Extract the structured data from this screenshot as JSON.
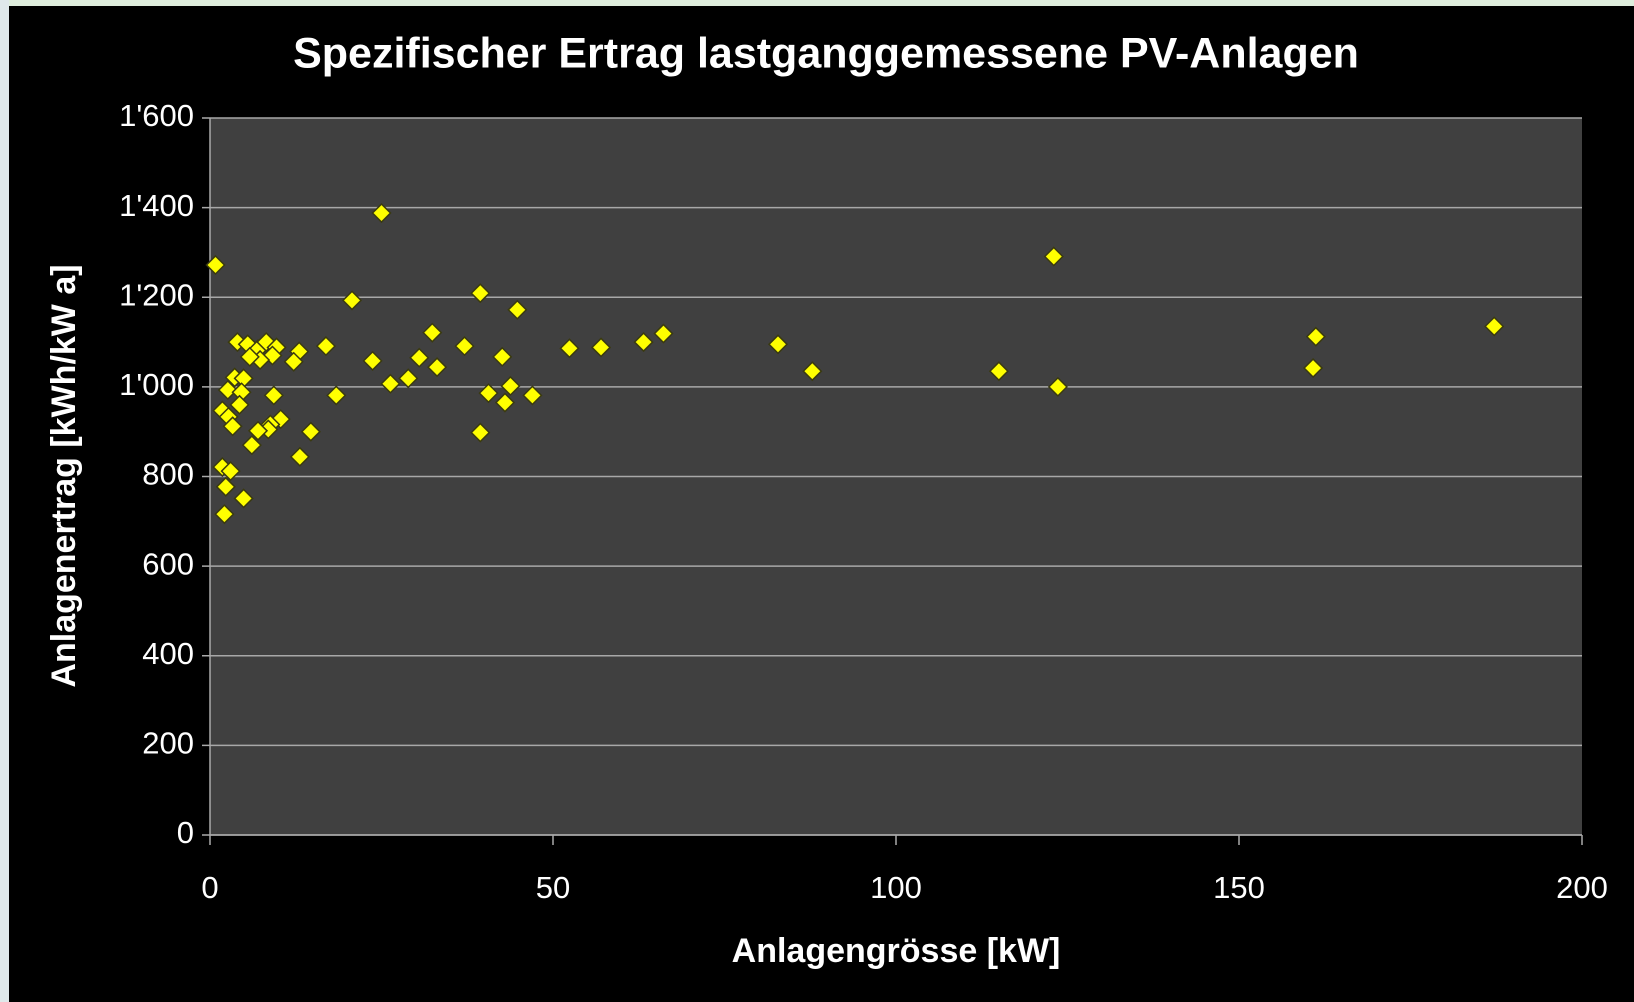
{
  "chart_data": {
    "type": "scatter",
    "title": "Spezifischer Ertrag lastganggemessene PV-Anlagen",
    "x_label": "Anlagengrösse [kW]",
    "y_label": "Anlagenertrag [kWh/kW a]",
    "color": "#ffff00",
    "xlim": [
      0,
      200
    ],
    "xticks": [
      0,
      50,
      100,
      150,
      200
    ],
    "ylim": [
      0,
      1600
    ],
    "yticks": [
      0,
      200,
      400,
      600,
      800,
      {
        "value": 1000,
        "label": "1'000"
      },
      {
        "value": 1200,
        "label": "1'200"
      },
      {
        "value": 1400,
        "label": "1'400"
      },
      {
        "value": 1600,
        "label": "1'600"
      }
    ],
    "grid": true,
    "x": [
      0.8,
      25,
      20.7,
      39.4,
      44.8,
      32.4,
      37.1,
      16.9,
      13,
      12.2,
      23.7,
      30.5,
      42.6,
      33.1,
      52.4,
      57,
      63.2,
      66.1,
      82.8,
      87.8,
      115,
      123,
      123.6,
      161.2,
      160.8,
      187.2,
      26.3,
      28.9,
      18.4,
      47,
      40.6,
      43.8,
      43,
      39.4,
      14.7,
      13.1,
      9.3,
      10.3,
      8.8,
      8.5,
      7,
      6.1,
      4,
      5.5,
      7,
      8.2,
      9.7,
      9.1,
      7.3,
      5.8,
      3.6,
      4.9,
      2.6,
      4.6,
      4.3,
      1.8,
      2.7,
      3.3,
      1.8,
      3,
      2.3,
      4.9,
      2.1
    ],
    "values": [
      1272,
      1388,
      1193,
      1209,
      1172,
      1121,
      1091,
      1091,
      1079,
      1056,
      1058,
      1065,
      1067,
      1044,
      1086,
      1088,
      1100,
      1119,
      1095,
      1035,
      1035,
      1291,
      1000,
      1112,
      1042,
      1135,
      1007,
      1019,
      981,
      981,
      986,
      1002,
      965,
      898,
      900,
      844,
      981,
      928,
      916,
      905,
      902,
      870,
      1100,
      1095,
      1084,
      1100,
      1088,
      1070,
      1060,
      1067,
      1021,
      1019,
      993,
      988,
      960,
      947,
      933,
      912,
      821,
      812,
      777,
      751,
      716
    ]
  }
}
